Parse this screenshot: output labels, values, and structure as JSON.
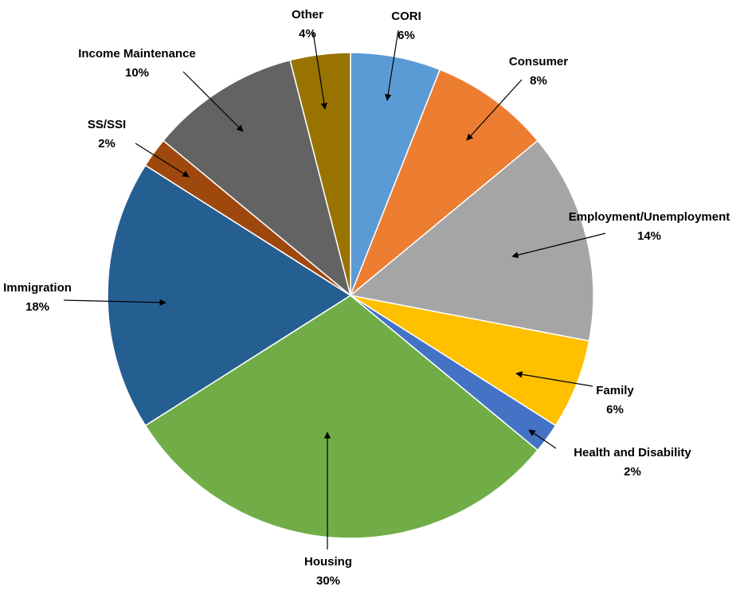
{
  "chart_data": {
    "type": "pie",
    "slices": [
      {
        "name": "CORI",
        "value": 6,
        "label": "6%",
        "color": "#5B9BD5"
      },
      {
        "name": "Consumer",
        "value": 8,
        "label": "8%",
        "color": "#ED7D31"
      },
      {
        "name": "Employment/Unemployment",
        "value": 14,
        "label": "14%",
        "color": "#A5A5A5"
      },
      {
        "name": "Family",
        "value": 6,
        "label": "6%",
        "color": "#FFC000"
      },
      {
        "name": "Health and Disability",
        "value": 2,
        "label": "2%",
        "color": "#4472C4"
      },
      {
        "name": "Housing",
        "value": 30,
        "label": "30%",
        "color": "#70AD47"
      },
      {
        "name": "Immigration",
        "value": 18,
        "label": "18%",
        "color": "#255E91"
      },
      {
        "name": "SS/SSI",
        "value": 2,
        "label": "2%",
        "color": "#9E480E"
      },
      {
        "name": "Income Maintenance",
        "value": 10,
        "label": "10%",
        "color": "#636363"
      },
      {
        "name": "Other",
        "value": 4,
        "label": "4%",
        "color": "#997300"
      }
    ]
  }
}
